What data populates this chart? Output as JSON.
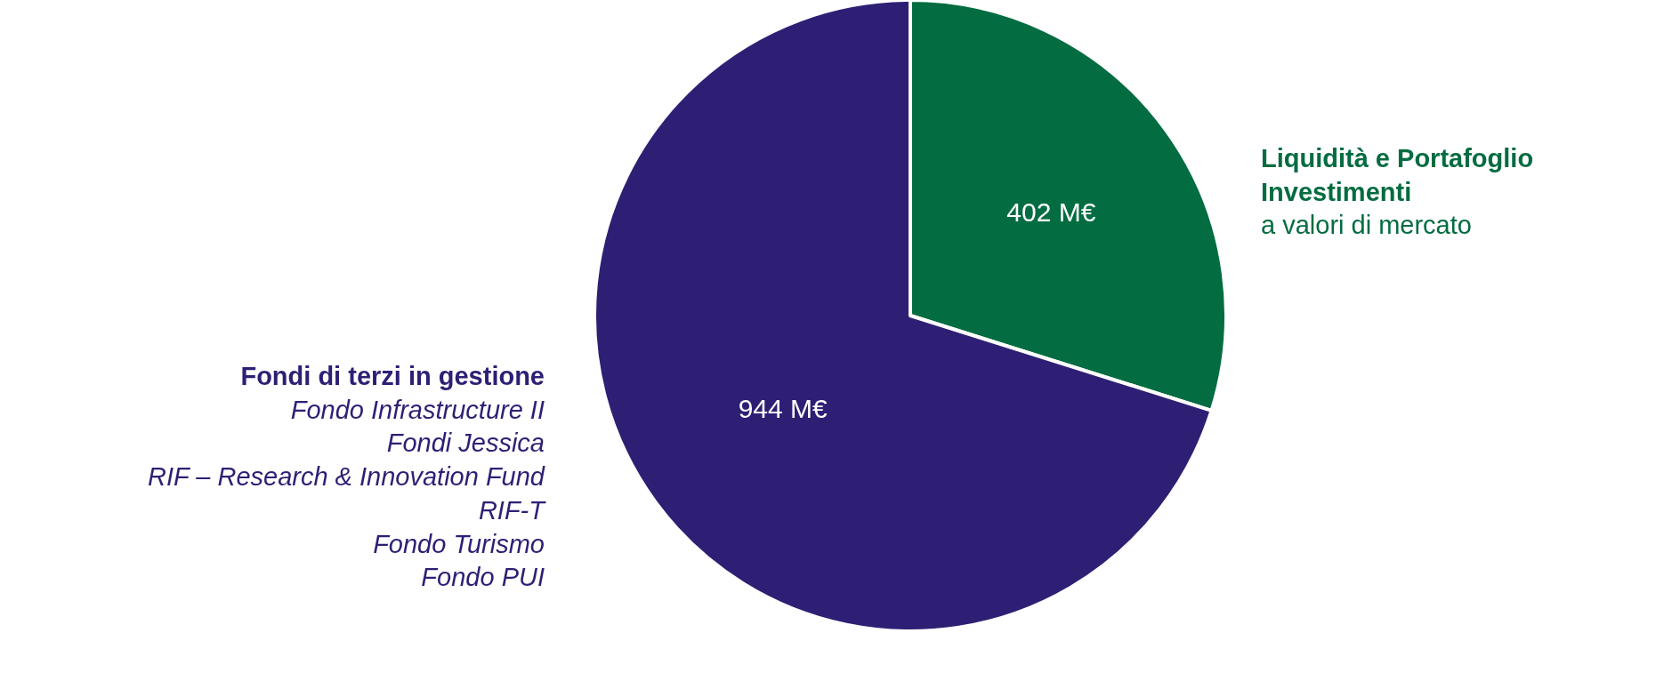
{
  "chart_data": {
    "type": "pie",
    "categories": [
      "Liquidità e Portafoglio Investimenti",
      "Fondi di terzi in gestione"
    ],
    "values": [
      402,
      944
    ],
    "colors": [
      "#036c41",
      "#2e1f74"
    ],
    "value_labels": [
      "402 M€",
      "944 M€"
    ],
    "annotations": [
      "a valori di mercato",
      "Fondo Infrastructure II",
      "Fondi Jessica",
      "RIF – Research & Innovation Fund",
      "RIF-T",
      "Fondo Turismo",
      "Fondo PUI"
    ],
    "legend": false
  }
}
